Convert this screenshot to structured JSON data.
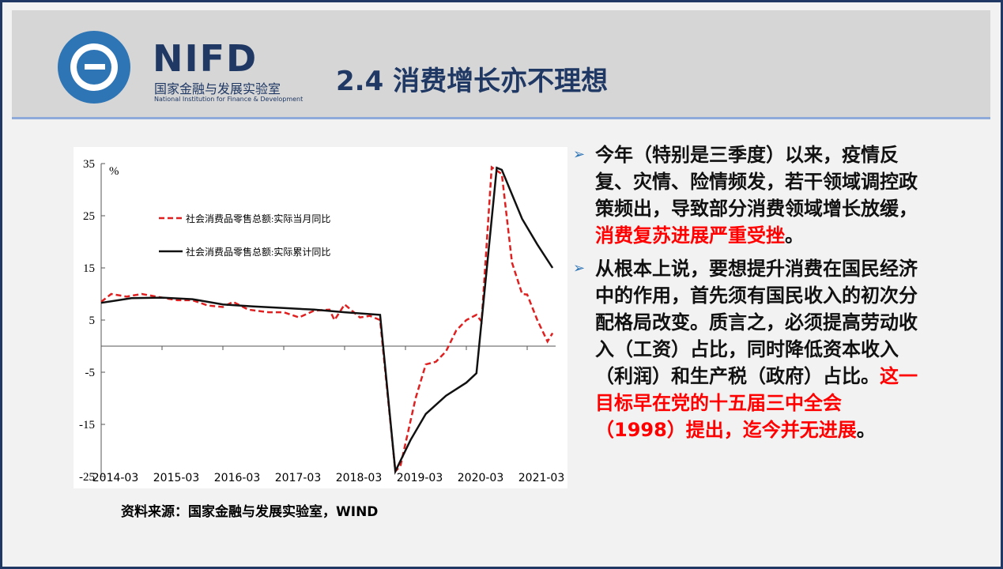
{
  "header": {
    "brand": "NIFD",
    "brand_cn": "国家金融与发展实验室",
    "brand_en": "National Institution for Finance & Development",
    "title": "2.4 消费增长亦不理想"
  },
  "chart_data": {
    "type": "line",
    "y_unit": "%",
    "ylim": [
      -25,
      35
    ],
    "yticks": [
      35,
      25,
      15,
      5,
      -5,
      -15,
      -25
    ],
    "xticks": [
      "2014-03",
      "2015-03",
      "2016-03",
      "2017-03",
      "2018-03",
      "2019-03",
      "2020-03",
      "2021-03"
    ],
    "legend": "upper-left",
    "series": [
      {
        "name": "社会消费品零售总额:实际当月同比",
        "color": "#e02020",
        "dash": true,
        "x": [
          "2014-03",
          "2014-05",
          "2014-08",
          "2014-11",
          "2015-03",
          "2015-06",
          "2015-09",
          "2015-12",
          "2016-03",
          "2016-05",
          "2016-08",
          "2016-12",
          "2017-03",
          "2017-06",
          "2017-09",
          "2017-12",
          "2018-01",
          "2018-03",
          "2018-06",
          "2018-08",
          "2018-10",
          "2019-01",
          "2019-02",
          "2019-05",
          "2019-07",
          "2019-09",
          "2019-11",
          "2020-01",
          "2020-03",
          "2020-05",
          "2020-06",
          "2020-08",
          "2020-10",
          "2020-12",
          "2021-02",
          "2021-03",
          "2021-05",
          "2021-07",
          "2021-08"
        ],
        "values": [
          8.5,
          10.0,
          9.5,
          10.0,
          9.3,
          8.8,
          8.8,
          7.8,
          7.5,
          8.5,
          7.0,
          6.5,
          6.5,
          5.5,
          6.8,
          7.0,
          5.0,
          8.0,
          5.5,
          5.8,
          5.0,
          -24.0,
          -23.0,
          -10.0,
          -3.5,
          -3.0,
          -1.0,
          3.0,
          5.0,
          6.0,
          4.7,
          34.3,
          33.0,
          16.0,
          10.0,
          9.9,
          5.0,
          0.9,
          2.5
        ]
      },
      {
        "name": "社会消费品零售总额:实际累计同比",
        "color": "#111111",
        "dash": false,
        "x": [
          "2014-03",
          "2014-09",
          "2015-03",
          "2015-09",
          "2016-03",
          "2016-09",
          "2017-03",
          "2017-09",
          "2018-03",
          "2018-10",
          "2019-01",
          "2019-04",
          "2019-07",
          "2019-11",
          "2020-03",
          "2020-05",
          "2020-09",
          "2020-10",
          "2021-02",
          "2021-05",
          "2021-08"
        ],
        "values": [
          8.3,
          9.2,
          9.3,
          9.0,
          8.0,
          7.6,
          7.3,
          7.0,
          6.5,
          6.0,
          -24.0,
          -18.0,
          -13.0,
          -9.5,
          -7.0,
          -5.2,
          34.2,
          33.8,
          24.4,
          19.5,
          15.0
        ]
      }
    ]
  },
  "source": "资料来源：国家金融与发展实验室，WIND",
  "bullets": [
    [
      {
        "text": "今年（特别是三季度）以来，疫情反复、灾情、险情频发，若干领域调控政策频出，导致部分消费领域增长放缓，",
        "highlight": false
      },
      {
        "text": "消费复苏进展严重受挫",
        "highlight": true
      },
      {
        "text": "。",
        "highlight": false
      }
    ],
    [
      {
        "text": "从根本上说，要想提升消费在国民经济中的作用，首先须有国民收入的初次分配格局改变。质言之，必须提高劳动收入（工资）占比，同时降低资本收入（利润）和生产税（政府）占比。",
        "highlight": false
      },
      {
        "text": "这一目标早在党的十五届三中全会（1998）提出，迄今并无进展",
        "highlight": true
      },
      {
        "text": "。",
        "highlight": false
      }
    ]
  ]
}
